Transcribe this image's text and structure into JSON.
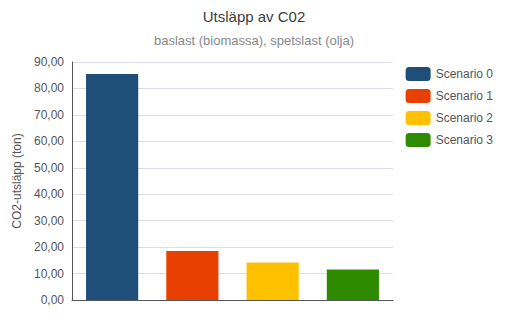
{
  "chart_data": {
    "type": "bar",
    "title": "Utsläpp av C02",
    "subtitle": "baslast (biomassa), spetslast (olja)",
    "categories": [
      "Scenario 0",
      "Scenario 1",
      "Scenario 2",
      "Scenario 3"
    ],
    "values": [
      85.5,
      18.5,
      14.2,
      11.5
    ],
    "colors": [
      "#1f4e79",
      "#e84000",
      "#ffc000",
      "#2e8b00"
    ],
    "ylabel": "CO2-utsläpp (ton)",
    "ylim": [
      0,
      90
    ],
    "yticks": [
      {
        "value": 0,
        "label": "0,00"
      },
      {
        "value": 10,
        "label": "10,00"
      },
      {
        "value": 20,
        "label": "20,00"
      },
      {
        "value": 30,
        "label": "30,00"
      },
      {
        "value": 40,
        "label": "40,00"
      },
      {
        "value": 50,
        "label": "50,00"
      },
      {
        "value": 60,
        "label": "60,00"
      },
      {
        "value": 70,
        "label": "70,00"
      },
      {
        "value": 80,
        "label": "80,00"
      },
      {
        "value": 90,
        "label": "90,00"
      }
    ],
    "grid": true,
    "legend": "right",
    "tick_labels": "y"
  }
}
